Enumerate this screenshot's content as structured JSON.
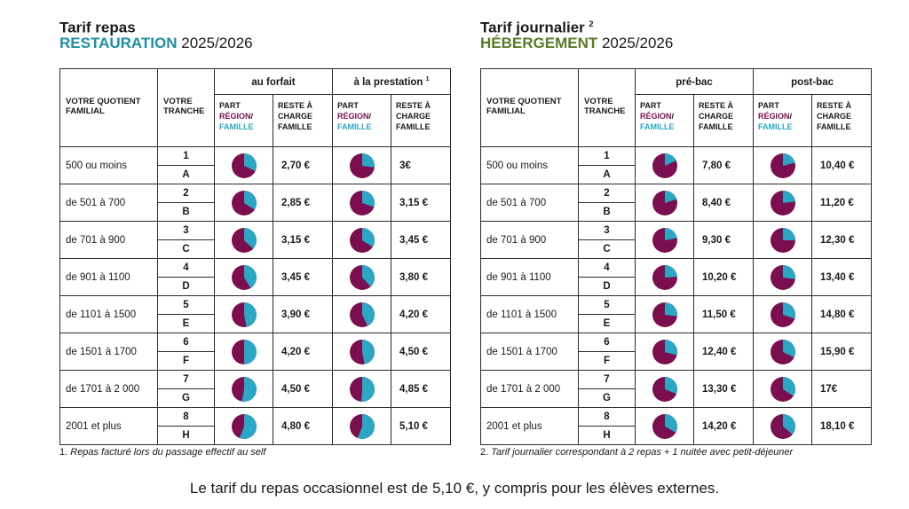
{
  "colors": {
    "region": "#7a0e4e",
    "famille": "#2aa7c4",
    "restauration": "#1c8fa3",
    "hebergement": "#5a7a25"
  },
  "left": {
    "title": "Tarif repas",
    "title_sup": "",
    "accent": "RESTAURATION",
    "year": " 2025/2026",
    "col_qf": [
      "VOTRE QUOTIENT",
      "FAMILIAL"
    ],
    "col_tranche": [
      "VOTRE",
      "TRANCHE"
    ],
    "group1": "au forfait",
    "group1_sup": "",
    "group2": "à la prestation",
    "group2_sup": "1",
    "sub_part": [
      "PART",
      "RÉGION",
      "/",
      "FAMILLE"
    ],
    "sub_reste": [
      "RESTE À",
      "CHARGE",
      "FAMILLE"
    ],
    "rows": [
      {
        "qf": "500 ou moins",
        "t1": "1",
        "t2": "A",
        "pie1": 0.68,
        "p1": "2,70 €",
        "pie2": 0.73,
        "p2": "3€"
      },
      {
        "qf": "de 501 à 700",
        "t1": "2",
        "t2": "B",
        "pie1": 0.66,
        "p1": "2,85 €",
        "pie2": 0.7,
        "p2": "3,15 €"
      },
      {
        "qf": "de 701 à 900",
        "t1": "3",
        "t2": "C",
        "pie1": 0.63,
        "p1": "3,15 €",
        "pie2": 0.66,
        "p2": "3,45 €"
      },
      {
        "qf": "de 901 à 1100",
        "t1": "4",
        "t2": "D",
        "pie1": 0.59,
        "p1": "3,45 €",
        "pie2": 0.62,
        "p2": "3,80 €"
      },
      {
        "qf": "de 1101 à 1500",
        "t1": "5",
        "t2": "E",
        "pie1": 0.53,
        "p1": "3,90 €",
        "pie2": 0.57,
        "p2": "4,20 €"
      },
      {
        "qf": "de 1501 à 1700",
        "t1": "6",
        "t2": "F",
        "pie1": 0.5,
        "p1": "4,20 €",
        "pie2": 0.53,
        "p2": "4,50 €"
      },
      {
        "qf": "de 1701 à 2 000",
        "t1": "7",
        "t2": "G",
        "pie1": 0.47,
        "p1": "4,50 €",
        "pie2": 0.49,
        "p2": "4,85 €"
      },
      {
        "qf": "2001 et plus",
        "t1": "8",
        "t2": "H",
        "pie1": 0.44,
        "p1": "4,80 €",
        "pie2": 0.44,
        "p2": "5,10 €"
      }
    ],
    "footnote_num": "1.",
    "footnote": "Repas facturé lors du passage effectif au self"
  },
  "right": {
    "title": "Tarif journalier",
    "title_sup": "2",
    "accent": "HÉBERGEMENT",
    "year": " 2025/2026",
    "col_qf": [
      "VOTRE QUOTIENT",
      "FAMILIAL"
    ],
    "col_tranche": [
      "VOTRE",
      "TRANCHE"
    ],
    "group1": "pré-bac",
    "group1_sup": "",
    "group2": "post-bac",
    "group2_sup": "",
    "sub_part": [
      "PART",
      "RÉGION",
      "/",
      "FAMILLE"
    ],
    "sub_reste": [
      "RESTE À",
      "CHARGE",
      "FAMILLE"
    ],
    "rows": [
      {
        "qf": "500 ou moins",
        "t1": "1",
        "t2": "A",
        "pie1": 0.82,
        "p1": "7,80 €",
        "pie2": 0.79,
        "p2": "10,40 €"
      },
      {
        "qf": "de 501 à 700",
        "t1": "2",
        "t2": "B",
        "pie1": 0.8,
        "p1": "8,40 €",
        "pie2": 0.77,
        "p2": "11,20 €"
      },
      {
        "qf": "de 701 à 900",
        "t1": "3",
        "t2": "C",
        "pie1": 0.78,
        "p1": "9,30 €",
        "pie2": 0.75,
        "p2": "12,30 €"
      },
      {
        "qf": "de 901 à 1100",
        "t1": "4",
        "t2": "D",
        "pie1": 0.76,
        "p1": "10,20 €",
        "pie2": 0.73,
        "p2": "13,40 €"
      },
      {
        "qf": "de 1101 à 1500",
        "t1": "5",
        "t2": "E",
        "pie1": 0.73,
        "p1": "11,50 €",
        "pie2": 0.7,
        "p2": "14,80 €"
      },
      {
        "qf": "de 1501 à 1700",
        "t1": "6",
        "t2": "F",
        "pie1": 0.71,
        "p1": "12,40 €",
        "pie2": 0.68,
        "p2": "15,90 €"
      },
      {
        "qf": "de 1701 à 2 000",
        "t1": "7",
        "t2": "G",
        "pie1": 0.69,
        "p1": "13,30 €",
        "pie2": 0.66,
        "p2": "17€"
      },
      {
        "qf": "2001 et plus",
        "t1": "8",
        "t2": "H",
        "pie1": 0.67,
        "p1": "14,20 €",
        "pie2": 0.64,
        "p2": "18,10 €"
      }
    ],
    "footnote_num": "2.",
    "footnote": "Tarif journalier correspondant à 2 repas + 1 nuitée avec petit-déjeuner"
  },
  "bottom_text": "Le tarif du repas occasionnel est de 5,10 €, y compris pour les élèves externes."
}
